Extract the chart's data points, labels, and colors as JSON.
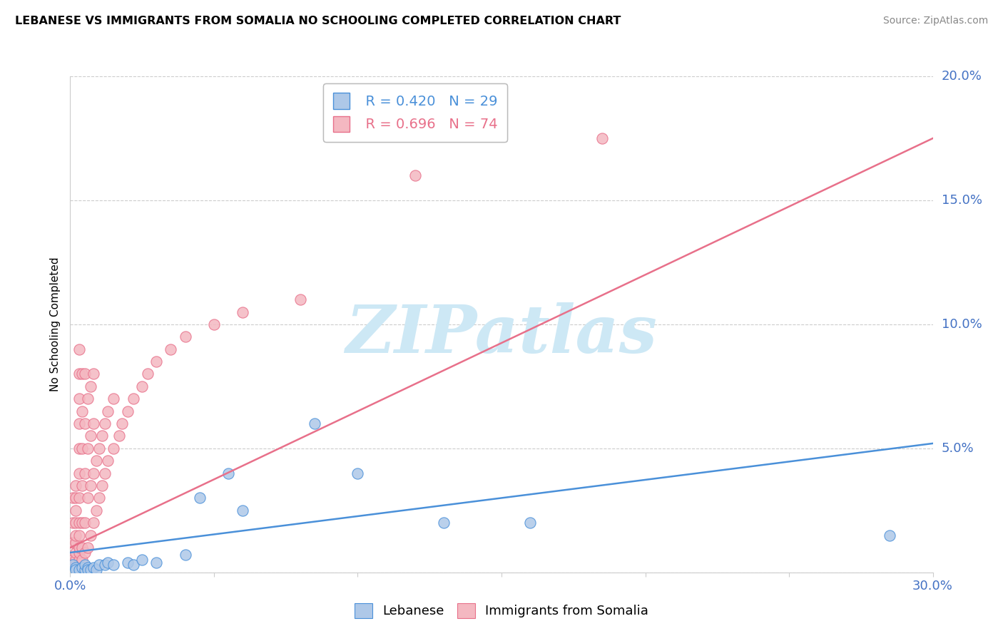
{
  "title": "LEBANESE VS IMMIGRANTS FROM SOMALIA NO SCHOOLING COMPLETED CORRELATION CHART",
  "source": "Source: ZipAtlas.com",
  "ylabel": "No Schooling Completed",
  "xlabel": "",
  "x_min": 0.0,
  "x_max": 0.3,
  "y_min": 0.0,
  "y_max": 0.2,
  "x_ticks": [
    0.0,
    0.05,
    0.1,
    0.15,
    0.2,
    0.25,
    0.3
  ],
  "x_tick_labels": [
    "0.0%",
    "",
    "",
    "",
    "",
    "",
    "30.0%"
  ],
  "y_ticks": [
    0.0,
    0.05,
    0.1,
    0.15,
    0.2
  ],
  "y_tick_labels": [
    "",
    "5.0%",
    "10.0%",
    "15.0%",
    "20.0%"
  ],
  "legend_blue_r": "R = 0.420",
  "legend_blue_n": "N = 29",
  "legend_pink_r": "R = 0.696",
  "legend_pink_n": "N = 74",
  "blue_color": "#aec8e8",
  "pink_color": "#f4b8c1",
  "blue_line_color": "#4a90d9",
  "pink_line_color": "#e8708a",
  "watermark": "ZIPatlas",
  "watermark_color": "#cde8f5",
  "blue_scatter": [
    [
      0.001,
      0.003
    ],
    [
      0.002,
      0.002
    ],
    [
      0.002,
      0.001
    ],
    [
      0.003,
      0.001
    ],
    [
      0.004,
      0.002
    ],
    [
      0.005,
      0.001
    ],
    [
      0.005,
      0.003
    ],
    [
      0.006,
      0.002
    ],
    [
      0.006,
      0.001
    ],
    [
      0.007,
      0.001
    ],
    [
      0.008,
      0.002
    ],
    [
      0.009,
      0.001
    ],
    [
      0.01,
      0.003
    ],
    [
      0.012,
      0.003
    ],
    [
      0.013,
      0.004
    ],
    [
      0.015,
      0.003
    ],
    [
      0.02,
      0.004
    ],
    [
      0.022,
      0.003
    ],
    [
      0.025,
      0.005
    ],
    [
      0.03,
      0.004
    ],
    [
      0.04,
      0.007
    ],
    [
      0.045,
      0.03
    ],
    [
      0.055,
      0.04
    ],
    [
      0.06,
      0.025
    ],
    [
      0.085,
      0.06
    ],
    [
      0.1,
      0.04
    ],
    [
      0.13,
      0.02
    ],
    [
      0.16,
      0.02
    ],
    [
      0.285,
      0.015
    ]
  ],
  "pink_scatter": [
    [
      0.001,
      0.005
    ],
    [
      0.001,
      0.012
    ],
    [
      0.001,
      0.02
    ],
    [
      0.001,
      0.03
    ],
    [
      0.002,
      0.005
    ],
    [
      0.002,
      0.008
    ],
    [
      0.002,
      0.012
    ],
    [
      0.002,
      0.015
    ],
    [
      0.002,
      0.02
    ],
    [
      0.002,
      0.025
    ],
    [
      0.002,
      0.03
    ],
    [
      0.002,
      0.035
    ],
    [
      0.003,
      0.005
    ],
    [
      0.003,
      0.008
    ],
    [
      0.003,
      0.01
    ],
    [
      0.003,
      0.015
    ],
    [
      0.003,
      0.02
    ],
    [
      0.003,
      0.03
    ],
    [
      0.003,
      0.04
    ],
    [
      0.003,
      0.05
    ],
    [
      0.003,
      0.06
    ],
    [
      0.003,
      0.07
    ],
    [
      0.003,
      0.08
    ],
    [
      0.003,
      0.09
    ],
    [
      0.004,
      0.005
    ],
    [
      0.004,
      0.01
    ],
    [
      0.004,
      0.02
    ],
    [
      0.004,
      0.035
    ],
    [
      0.004,
      0.05
    ],
    [
      0.004,
      0.065
    ],
    [
      0.004,
      0.08
    ],
    [
      0.005,
      0.008
    ],
    [
      0.005,
      0.02
    ],
    [
      0.005,
      0.04
    ],
    [
      0.005,
      0.06
    ],
    [
      0.005,
      0.08
    ],
    [
      0.006,
      0.01
    ],
    [
      0.006,
      0.03
    ],
    [
      0.006,
      0.05
    ],
    [
      0.006,
      0.07
    ],
    [
      0.007,
      0.015
    ],
    [
      0.007,
      0.035
    ],
    [
      0.007,
      0.055
    ],
    [
      0.007,
      0.075
    ],
    [
      0.008,
      0.02
    ],
    [
      0.008,
      0.04
    ],
    [
      0.008,
      0.06
    ],
    [
      0.008,
      0.08
    ],
    [
      0.009,
      0.025
    ],
    [
      0.009,
      0.045
    ],
    [
      0.01,
      0.03
    ],
    [
      0.01,
      0.05
    ],
    [
      0.011,
      0.035
    ],
    [
      0.011,
      0.055
    ],
    [
      0.012,
      0.04
    ],
    [
      0.012,
      0.06
    ],
    [
      0.013,
      0.045
    ],
    [
      0.013,
      0.065
    ],
    [
      0.015,
      0.05
    ],
    [
      0.015,
      0.07
    ],
    [
      0.017,
      0.055
    ],
    [
      0.018,
      0.06
    ],
    [
      0.02,
      0.065
    ],
    [
      0.022,
      0.07
    ],
    [
      0.025,
      0.075
    ],
    [
      0.027,
      0.08
    ],
    [
      0.03,
      0.085
    ],
    [
      0.035,
      0.09
    ],
    [
      0.04,
      0.095
    ],
    [
      0.05,
      0.1
    ],
    [
      0.06,
      0.105
    ],
    [
      0.08,
      0.11
    ],
    [
      0.12,
      0.16
    ],
    [
      0.185,
      0.175
    ]
  ],
  "blue_line": [
    [
      0.0,
      0.008
    ],
    [
      0.3,
      0.052
    ]
  ],
  "pink_line": [
    [
      0.0,
      0.01
    ],
    [
      0.3,
      0.175
    ]
  ]
}
